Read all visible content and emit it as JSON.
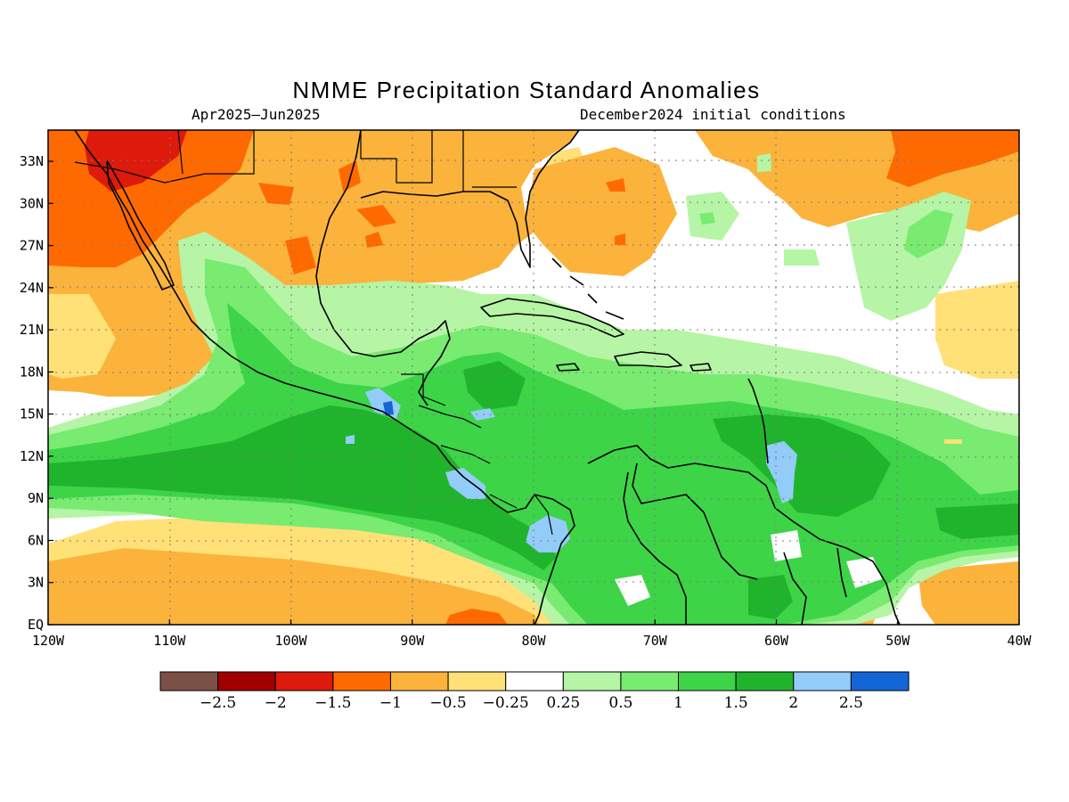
{
  "title": "NMME Precipitation Standard Anomalies",
  "subtitle_left": "Apr2025–Jun2025",
  "subtitle_right": "December2024 initial conditions",
  "lon_labels": [
    "120W",
    "110W",
    "100W",
    "90W",
    "80W",
    "70W",
    "60W",
    "50W",
    "40W"
  ],
  "lat_labels": [
    "EQ",
    "3N",
    "6N",
    "9N",
    "12N",
    "15N",
    "18N",
    "21N",
    "24N",
    "27N",
    "30N",
    "33N"
  ],
  "colorbar": {
    "colors": [
      "#7b5146",
      "#a00000",
      "#dd1a0b",
      "#ff6a00",
      "#fbb33c",
      "#ffe178",
      "#ffffff",
      "#b5f5a5",
      "#78eb70",
      "#3dd448",
      "#20b42c",
      "#93ccf9",
      "#1465d6"
    ],
    "labels": [
      "−2.5",
      "−2",
      "−1.5",
      "−1",
      "−0.5",
      "−0.25",
      "0.25",
      "0.5",
      "1",
      "1.5",
      "2",
      "2.5"
    ]
  },
  "colors": {
    "neg_strong": "#dd1a0b",
    "neg_mod": "#ff6a00",
    "neg_weak": "#fbb33c",
    "neg_slight": "#ffe178",
    "pos_slight": "#b5f5a5",
    "pos_weak": "#78eb70",
    "pos_mod": "#3dd448",
    "pos_strong": "#20b42c",
    "pos_high": "#93ccf9",
    "pos_extreme": "#1465d6"
  }
}
